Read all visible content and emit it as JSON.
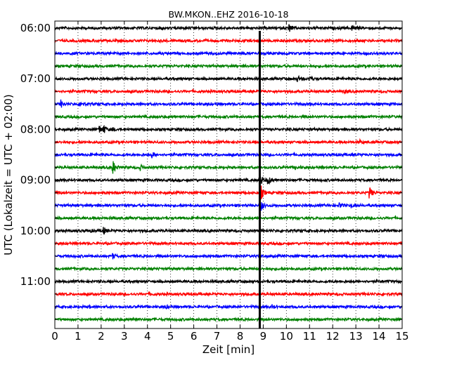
{
  "chart_data": {
    "type": "line",
    "title": "BW.MKON..EHZ 2016-10-18",
    "xlabel": "Zeit  [min]",
    "ylabel": "UTC (Lokalzeit = UTC + 02:00)",
    "xlim": [
      0,
      15
    ],
    "x_ticks": [
      0,
      1,
      2,
      3,
      4,
      5,
      6,
      7,
      8,
      9,
      10,
      11,
      12,
      13,
      14,
      15
    ],
    "x_tick_labels": [
      "0",
      "1",
      "2",
      "3",
      "4",
      "5",
      "6",
      "7",
      "8",
      "9",
      "10",
      "11",
      "12",
      "13",
      "14",
      "15"
    ],
    "row_interval_minutes": 15,
    "row_start_times": [
      "06:00",
      "06:15",
      "06:30",
      "06:45",
      "07:00",
      "07:15",
      "07:30",
      "07:45",
      "08:00",
      "08:15",
      "08:30",
      "08:45",
      "09:00",
      "09:15",
      "09:30",
      "09:45",
      "10:00",
      "10:15",
      "10:30",
      "10:45",
      "11:00",
      "11:15",
      "11:30",
      "11:45"
    ],
    "y_tick_labels": [
      "06:00",
      "07:00",
      "08:00",
      "09:00",
      "10:00",
      "11:00"
    ],
    "trace_colors": [
      "#000000",
      "#ff0000",
      "#0000ff",
      "#008000"
    ],
    "grid": "vertical dotted lines at each minute",
    "events": [
      {
        "row": 0,
        "minute": 10.1,
        "amp": 0.55
      },
      {
        "row": 0,
        "minute": 12.8,
        "amp": 0.45
      },
      {
        "row": 0,
        "minute": 4.6,
        "amp": 0.15
      },
      {
        "row": 4,
        "minute": 10.5,
        "amp": 0.3
      },
      {
        "row": 4,
        "minute": 11.0,
        "amp": 0.35
      },
      {
        "row": 5,
        "minute": 12.5,
        "amp": 0.15
      },
      {
        "row": 6,
        "minute": 0.25,
        "amp": 0.55
      },
      {
        "row": 6,
        "minute": 1.1,
        "amp": 0.4
      },
      {
        "row": 8,
        "minute": 1.9,
        "amp": 0.6
      },
      {
        "row": 8,
        "minute": 2.1,
        "amp": 0.5
      },
      {
        "row": 8,
        "minute": 2.5,
        "amp": 0.2
      },
      {
        "row": 9,
        "minute": 13.2,
        "amp": 0.2
      },
      {
        "row": 10,
        "minute": 4.2,
        "amp": 0.35
      },
      {
        "row": 11,
        "minute": 2.5,
        "amp": 0.95
      },
      {
        "row": 11,
        "minute": 3.7,
        "amp": 0.3
      },
      {
        "row": 11,
        "minute": 10.4,
        "amp": 0.25
      },
      {
        "row": 12,
        "minute": 8.85,
        "amp": 1.0
      },
      {
        "row": 12,
        "minute": 9.2,
        "amp": 0.6
      },
      {
        "row": 13,
        "minute": 8.9,
        "amp": 0.9
      },
      {
        "row": 13,
        "minute": 13.6,
        "amp": 0.75
      },
      {
        "row": 14,
        "minute": 8.9,
        "amp": 0.7
      },
      {
        "row": 14,
        "minute": 12.3,
        "amp": 0.35
      },
      {
        "row": 14,
        "minute": 12.8,
        "amp": 0.25
      },
      {
        "row": 16,
        "minute": 2.1,
        "amp": 0.45
      },
      {
        "row": 16,
        "minute": 1.5,
        "amp": 0.15
      },
      {
        "row": 18,
        "minute": 2.5,
        "amp": 0.3
      },
      {
        "row": 21,
        "minute": 4.1,
        "amp": 0.15
      },
      {
        "row": 22,
        "minute": 9.4,
        "amp": 0.2
      },
      {
        "row": 22,
        "minute": 4.8,
        "amp": 0.15
      },
      {
        "row": 22,
        "minute": 1.5,
        "amp": 0.12
      },
      {
        "row": 23,
        "minute": 3.4,
        "amp": 0.15
      }
    ],
    "global_event_minute": 8.85
  }
}
